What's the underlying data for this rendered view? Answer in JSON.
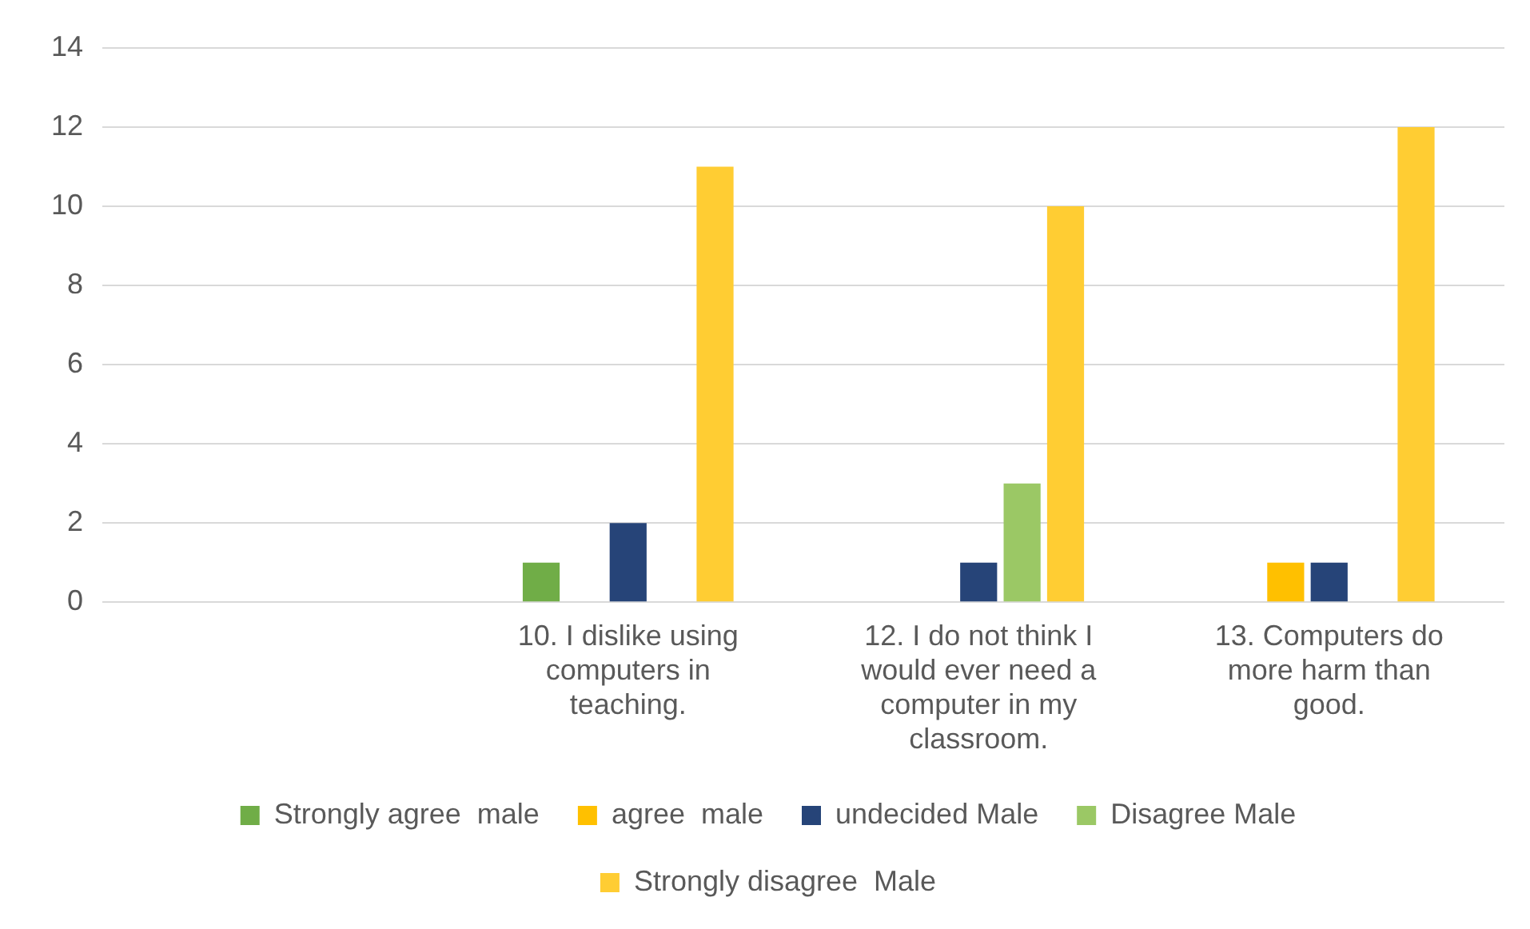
{
  "chart_data": {
    "type": "bar",
    "categories": [
      null,
      "10. I dislike using computers in teaching.",
      "12. I do not think I would ever need a computer in my classroom.",
      "13. Computers do more harm than good."
    ],
    "series": [
      {
        "name": "Strongly agree  male",
        "color": "#70ad47",
        "values": [
          null,
          1,
          null,
          null
        ]
      },
      {
        "name": "agree  male",
        "color": "#ffc000",
        "values": [
          null,
          null,
          null,
          1
        ]
      },
      {
        "name": "undecided Male",
        "color": "#264478",
        "values": [
          null,
          2,
          1,
          1
        ]
      },
      {
        "name": "Disagree Male",
        "color": "#9bc865",
        "values": [
          null,
          null,
          3,
          null
        ]
      },
      {
        "name": "Strongly disagree  Male",
        "color": "#ffcd33",
        "values": [
          null,
          11,
          10,
          12
        ]
      }
    ],
    "ylim": [
      0,
      14
    ],
    "yticks": [
      0,
      2,
      4,
      6,
      8,
      10,
      12,
      14
    ],
    "grid": "y",
    "legend": "bottom"
  }
}
